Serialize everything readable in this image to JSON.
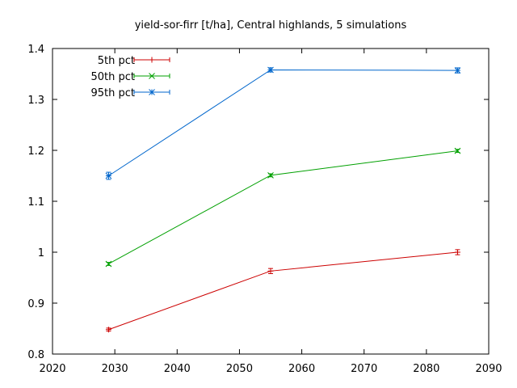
{
  "chart_data": {
    "type": "line",
    "title": "yield-sor-firr [t/ha], Central highlands, 5 simulations",
    "xlabel": "",
    "ylabel": "",
    "xlim": [
      2020,
      2090
    ],
    "ylim": [
      0.8,
      1.4
    ],
    "xticks": [
      2020,
      2030,
      2040,
      2050,
      2060,
      2070,
      2080,
      2090
    ],
    "yticks": [
      0.8,
      0.9,
      1.0,
      1.1,
      1.2,
      1.3,
      1.4
    ],
    "ytick_labels": [
      "0.8",
      "0.9",
      "1",
      "1.1",
      "1.2",
      "1.3",
      "1.4"
    ],
    "grid": false,
    "legend_position": "top-left",
    "x": [
      2029,
      2055,
      2085
    ],
    "series": [
      {
        "name": "5th pct",
        "color": "#cc0000",
        "marker": "plus",
        "values": [
          0.848,
          0.963,
          1.0
        ],
        "errors": [
          0.003,
          0.005,
          0.005
        ]
      },
      {
        "name": "50th pct",
        "color": "#00a000",
        "marker": "cross",
        "values": [
          0.977,
          1.151,
          1.199
        ],
        "errors": [
          0.003,
          0.003,
          0.003
        ]
      },
      {
        "name": "95th pct",
        "color": "#0066cc",
        "marker": "star",
        "values": [
          1.15,
          1.358,
          1.357
        ],
        "errors": [
          0.007,
          0.004,
          0.005
        ]
      }
    ]
  }
}
